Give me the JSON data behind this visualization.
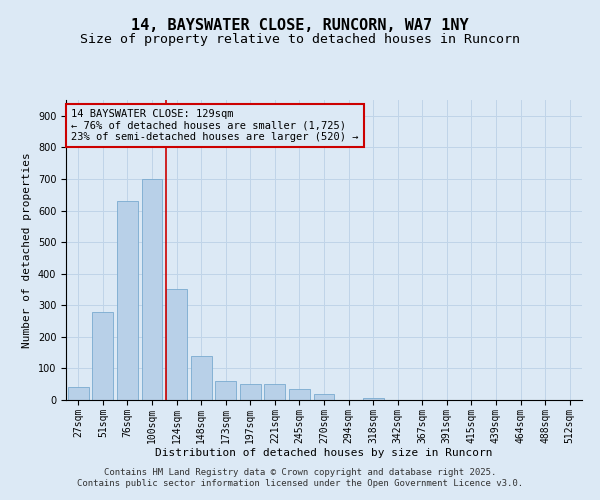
{
  "title": "14, BAYSWATER CLOSE, RUNCORN, WA7 1NY",
  "subtitle": "Size of property relative to detached houses in Runcorn",
  "xlabel": "Distribution of detached houses by size in Runcorn",
  "ylabel": "Number of detached properties",
  "categories": [
    "27sqm",
    "51sqm",
    "76sqm",
    "100sqm",
    "124sqm",
    "148sqm",
    "173sqm",
    "197sqm",
    "221sqm",
    "245sqm",
    "270sqm",
    "294sqm",
    "318sqm",
    "342sqm",
    "367sqm",
    "391sqm",
    "415sqm",
    "439sqm",
    "464sqm",
    "488sqm",
    "512sqm"
  ],
  "values": [
    40,
    280,
    630,
    700,
    350,
    140,
    60,
    50,
    50,
    35,
    20,
    0,
    5,
    0,
    0,
    0,
    0,
    0,
    0,
    0,
    0
  ],
  "bar_color": "#b8d0e8",
  "bar_edge_color": "#7aaad0",
  "grid_color": "#c0d4e8",
  "background_color": "#dce9f5",
  "vline_color": "#cc0000",
  "vline_x_index": 3.57,
  "annotation_text": "14 BAYSWATER CLOSE: 129sqm\n← 76% of detached houses are smaller (1,725)\n23% of semi-detached houses are larger (520) →",
  "annotation_box_color": "#cc0000",
  "ylim": [
    0,
    950
  ],
  "yticks": [
    0,
    100,
    200,
    300,
    400,
    500,
    600,
    700,
    800,
    900
  ],
  "footer_line1": "Contains HM Land Registry data © Crown copyright and database right 2025.",
  "footer_line2": "Contains public sector information licensed under the Open Government Licence v3.0.",
  "title_fontsize": 11,
  "subtitle_fontsize": 9.5,
  "axis_label_fontsize": 8,
  "tick_fontsize": 7,
  "annotation_fontsize": 7.5,
  "footer_fontsize": 6.5
}
